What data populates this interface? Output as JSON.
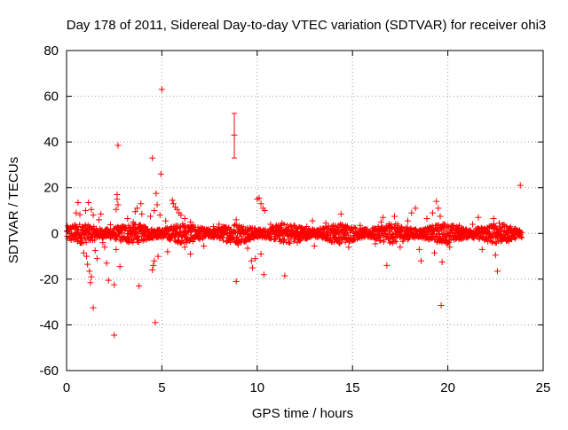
{
  "chart_data": {
    "type": "scatter",
    "title": "Day 178 of 2011, Sidereal Day-to-day VTEC variation (SDTVAR) for receiver ohi3",
    "xlabel": "GPS time / hours",
    "ylabel": "SDTVAR / TECUs",
    "xlim": [
      0,
      25
    ],
    "ylim": [
      -60,
      80
    ],
    "xticks": [
      0,
      5,
      10,
      15,
      20,
      25
    ],
    "yticks": [
      -60,
      -40,
      -20,
      0,
      20,
      40,
      60,
      80
    ],
    "xtick_labels": [
      "0",
      "5",
      "10",
      "15",
      "20",
      "25"
    ],
    "ytick_labels": [
      "-60",
      "-40",
      "-20",
      "0",
      "20",
      "40",
      "60",
      "80"
    ],
    "grid": true,
    "marker": "+",
    "color": "#ff0000",
    "dense_band": {
      "x_range": [
        0.0,
        23.9
      ],
      "typical_abs_y": 2,
      "note": "thousands of points clustered tightly around 0"
    },
    "error_bar": {
      "x": 8.8,
      "y": 43,
      "y_low": 33,
      "y_high": 52.5
    },
    "series": [
      {
        "name": "outliers",
        "points": [
          [
            0.5,
            9
          ],
          [
            0.6,
            13.5
          ],
          [
            0.7,
            8.2
          ],
          [
            0.8,
            -4
          ],
          [
            0.9,
            -8.5
          ],
          [
            1.0,
            10
          ],
          [
            1.05,
            -10
          ],
          [
            1.1,
            -13.5
          ],
          [
            1.2,
            -16.5
          ],
          [
            1.25,
            -21.5
          ],
          [
            1.3,
            -19
          ],
          [
            1.15,
            13.5
          ],
          [
            1.3,
            10.5
          ],
          [
            1.4,
            8
          ],
          [
            1.4,
            -32.5
          ],
          [
            1.5,
            -7.5
          ],
          [
            1.6,
            -11
          ],
          [
            1.7,
            6
          ],
          [
            1.8,
            8.5
          ],
          [
            1.9,
            -4
          ],
          [
            2.0,
            -6
          ],
          [
            2.1,
            -13
          ],
          [
            2.2,
            -20.5
          ],
          [
            2.3,
            3.8
          ],
          [
            2.5,
            -22.5
          ],
          [
            2.5,
            -44.5
          ],
          [
            2.6,
            -7
          ],
          [
            2.65,
            15
          ],
          [
            2.65,
            17
          ],
          [
            2.7,
            38.5
          ],
          [
            2.7,
            12.5
          ],
          [
            2.6,
            10.5
          ],
          [
            2.8,
            -14.5
          ],
          [
            3.2,
            6.5
          ],
          [
            3.5,
            5
          ],
          [
            3.6,
            9.5
          ],
          [
            3.7,
            11
          ],
          [
            3.8,
            -23
          ],
          [
            3.9,
            13
          ],
          [
            3.95,
            8.5
          ],
          [
            4.2,
            -2.5
          ],
          [
            4.4,
            7.5
          ],
          [
            4.5,
            33
          ],
          [
            4.5,
            -16
          ],
          [
            4.55,
            -14
          ],
          [
            4.6,
            10
          ],
          [
            4.6,
            -12
          ],
          [
            4.65,
            -39
          ],
          [
            4.7,
            17.5
          ],
          [
            4.75,
            12.5
          ],
          [
            4.8,
            -10
          ],
          [
            4.9,
            8
          ],
          [
            4.95,
            26
          ],
          [
            5.0,
            63
          ],
          [
            5.2,
            5.5
          ],
          [
            5.3,
            -8
          ],
          [
            5.55,
            14.5
          ],
          [
            5.6,
            13
          ],
          [
            5.7,
            11.5
          ],
          [
            5.8,
            10.5
          ],
          [
            5.9,
            9
          ],
          [
            6.0,
            8
          ],
          [
            6.2,
            6.5
          ],
          [
            6.5,
            5
          ],
          [
            6.2,
            -6
          ],
          [
            6.5,
            -9
          ],
          [
            7.2,
            -5.5
          ],
          [
            7.7,
            3
          ],
          [
            8.0,
            4
          ],
          [
            8.6,
            -3
          ],
          [
            8.9,
            6
          ],
          [
            8.9,
            -21
          ],
          [
            9.0,
            -5
          ],
          [
            9.5,
            -6.5
          ],
          [
            10.0,
            15
          ],
          [
            10.1,
            15.5
          ],
          [
            10.2,
            13
          ],
          [
            10.3,
            11
          ],
          [
            10.4,
            10
          ],
          [
            9.7,
            -12
          ],
          [
            9.75,
            -15
          ],
          [
            9.9,
            -11
          ],
          [
            10.2,
            -9
          ],
          [
            10.35,
            -18
          ],
          [
            10.7,
            4
          ],
          [
            11.0,
            3.5
          ],
          [
            11.3,
            4.5
          ],
          [
            11.45,
            -18.5
          ],
          [
            12.1,
            -4
          ],
          [
            12.6,
            3
          ],
          [
            12.9,
            5.5
          ],
          [
            13.0,
            -5.5
          ],
          [
            13.6,
            4.5
          ],
          [
            14.1,
            3
          ],
          [
            14.4,
            8.5
          ],
          [
            14.8,
            -6
          ],
          [
            15.4,
            3.5
          ],
          [
            16.2,
            -4.5
          ],
          [
            16.5,
            5
          ],
          [
            16.6,
            7
          ],
          [
            16.8,
            -14
          ],
          [
            17.2,
            7.5
          ],
          [
            17.5,
            -6
          ],
          [
            17.9,
            5.5
          ],
          [
            18.1,
            9
          ],
          [
            18.3,
            11
          ],
          [
            18.5,
            -7
          ],
          [
            18.6,
            -12
          ],
          [
            18.9,
            6.5
          ],
          [
            19.2,
            9
          ],
          [
            19.3,
            -8.5
          ],
          [
            19.4,
            14
          ],
          [
            19.5,
            11
          ],
          [
            19.6,
            7.5
          ],
          [
            19.65,
            -31.5
          ],
          [
            19.7,
            -12.5
          ],
          [
            19.8,
            4
          ],
          [
            20.1,
            -6
          ],
          [
            20.6,
            3.5
          ],
          [
            21.3,
            4
          ],
          [
            21.6,
            7
          ],
          [
            21.8,
            -7
          ],
          [
            22.1,
            -3.5
          ],
          [
            22.4,
            6.5
          ],
          [
            22.5,
            -9.5
          ],
          [
            22.6,
            -16.5
          ],
          [
            22.7,
            4.5
          ],
          [
            23.2,
            -3.5
          ],
          [
            23.8,
            21
          ]
        ]
      }
    ]
  }
}
